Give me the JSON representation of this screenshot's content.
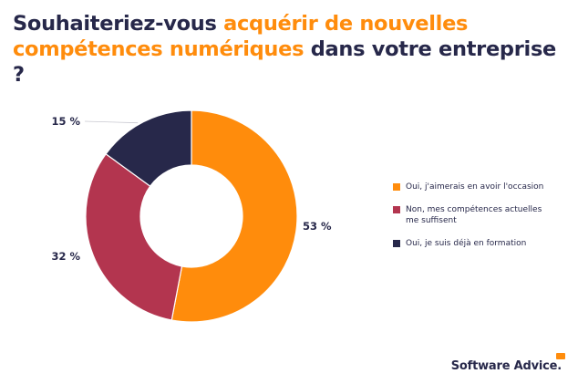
{
  "title": {
    "part1": "Souhaiteriez-vous ",
    "part2": "acquérir de nouvelles compétences numériques",
    "part3": " dans votre entreprise ?"
  },
  "colors": {
    "navy": "#27284a",
    "orange": "#ff8c0c",
    "crimson": "#b3354f"
  },
  "chart_data": {
    "type": "pie",
    "style": "donut",
    "title": "Souhaiteriez-vous acquérir de nouvelles compétences numériques dans votre entreprise ?",
    "categories": [
      "Oui, j'aimerais en avoir l'occasion",
      "Non, mes compétences actuelles me suffisent",
      "Oui, je suis déjà en formation"
    ],
    "values": [
      53,
      32,
      15
    ],
    "value_labels": [
      "53 %",
      "32 %",
      "15 %"
    ],
    "colors": [
      "#ff8c0c",
      "#b3354f",
      "#27284a"
    ],
    "legend_position": "right"
  },
  "legend": {
    "items": [
      {
        "label": "Oui, j'aimerais en avoir l'occasion",
        "color": "#ff8c0c"
      },
      {
        "label": "Non, mes compétences actuelles me suffisent",
        "color": "#b3354f"
      },
      {
        "label": "Oui, je suis déjà en formation",
        "color": "#27284a"
      }
    ]
  },
  "brand": {
    "name": "Software Advice."
  }
}
